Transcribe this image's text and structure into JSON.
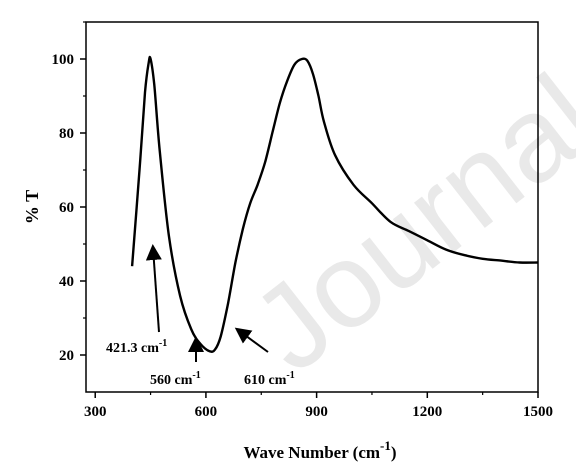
{
  "chart_data": {
    "type": "line",
    "title": "",
    "xlabel": "Wave Number (cm",
    "xlabel_sup": "-1",
    "xlabel_close": ")",
    "ylabel": "% T",
    "xlim": [
      275,
      1500
    ],
    "ylim": [
      10,
      110
    ],
    "x_ticks": [
      300,
      600,
      900,
      1200,
      1500
    ],
    "y_ticks": [
      20,
      40,
      60,
      80,
      100
    ],
    "grid": false,
    "series": [
      {
        "x": [
          400,
          420,
          435,
          445,
          450,
          460,
          475,
          500,
          530,
          560,
          585,
          610,
          625,
          640,
          660,
          680,
          700,
          720,
          740,
          760,
          780,
          800,
          820,
          840,
          860,
          875,
          890,
          905,
          920,
          950,
          1000,
          1050,
          1100,
          1150,
          1200,
          1250,
          1300,
          1350,
          1400,
          1450,
          1500
        ],
        "y": [
          44,
          70,
          91,
          99,
          100,
          93,
          75,
          52,
          36,
          27,
          23,
          21,
          21.5,
          25,
          34,
          45,
          54,
          61,
          66,
          72,
          80,
          88,
          94,
          98.5,
          100,
          99.5,
          96,
          90,
          83,
          74,
          66,
          61,
          56,
          53.5,
          51,
          48.5,
          47,
          46,
          45.5,
          45,
          45
        ]
      }
    ],
    "annotations": [
      {
        "label": "421.3 cm",
        "sup": "-1",
        "x": 421.3
      },
      {
        "label": "560 cm",
        "sup": "-1",
        "x": 560
      },
      {
        "label": "610 cm",
        "sup": "-1",
        "x": 610
      }
    ]
  },
  "watermark": "Journal Pre-proof"
}
